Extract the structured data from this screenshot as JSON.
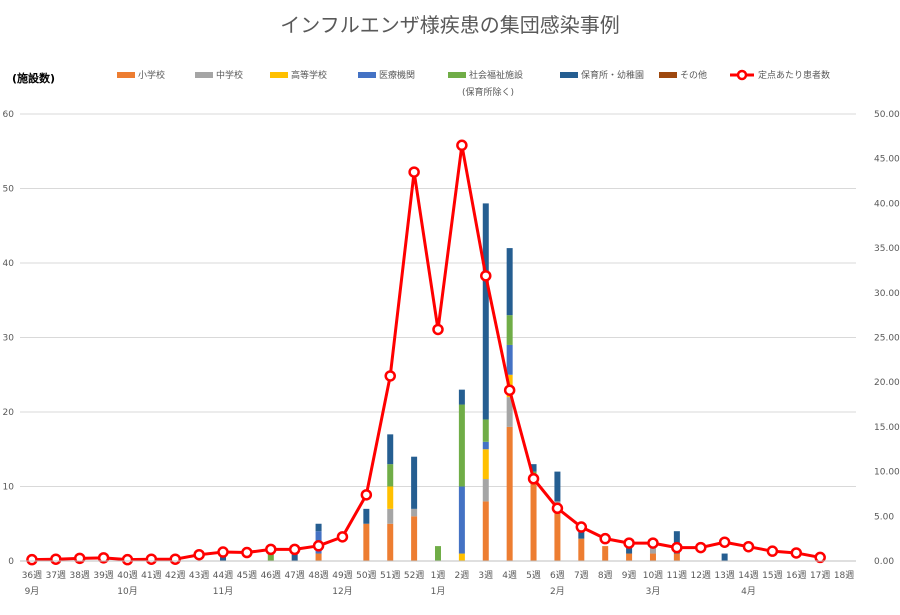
{
  "chart_data": {
    "type": "bar",
    "title": "インフルエンザ様疾患の集団感染事例",
    "ylabel": "(施設数)",
    "ylim": [
      0,
      60
    ],
    "y2lim": [
      0,
      50
    ],
    "y_ticks": [
      "0",
      "10",
      "20",
      "30",
      "40",
      "50",
      "60"
    ],
    "y2_ticks": [
      "0.00",
      "5.00",
      "10.00",
      "15.00",
      "20.00",
      "25.00",
      "30.00",
      "35.00",
      "40.00",
      "45.00",
      "50.00"
    ],
    "grid": true,
    "legend_position": "top",
    "legend_note": "(保育所除く)",
    "categories": [
      "36週",
      "37週",
      "38週",
      "39週",
      "40週",
      "41週",
      "42週",
      "43週",
      "44週",
      "45週",
      "46週",
      "47週",
      "48週",
      "49週",
      "50週",
      "51週",
      "52週",
      "1週",
      "2週",
      "3週",
      "4週",
      "5週",
      "6週",
      "7週",
      "8週",
      "9週",
      "10週",
      "11週",
      "12週",
      "13週",
      "14週",
      "15週",
      "16週",
      "17週",
      "18週"
    ],
    "months": [
      {
        "label": "9月",
        "index": 0
      },
      {
        "label": "10月",
        "index": 4
      },
      {
        "label": "11月",
        "index": 8
      },
      {
        "label": "12月",
        "index": 13
      },
      {
        "label": "1月",
        "index": 17
      },
      {
        "label": "2月",
        "index": 22
      },
      {
        "label": "3月",
        "index": 26
      },
      {
        "label": "4月",
        "index": 30
      }
    ],
    "series": [
      {
        "name": "小学校",
        "color": "#ED7D31",
        "values": [
          0,
          0,
          0,
          0,
          0,
          0,
          0,
          0,
          0,
          0,
          0,
          0,
          1,
          0,
          5,
          5,
          6,
          0,
          0,
          8,
          18,
          11,
          7,
          3,
          2,
          1,
          1,
          1,
          0,
          0,
          0,
          0,
          0,
          0,
          0
        ]
      },
      {
        "name": "中学校",
        "color": "#A5A5A5",
        "values": [
          0,
          0,
          0,
          0,
          0,
          0,
          0,
          0,
          0,
          0,
          0,
          0,
          0,
          0,
          0,
          2,
          1,
          0,
          0,
          3,
          4,
          0,
          1,
          0,
          0,
          0,
          1,
          0,
          0,
          0,
          0,
          0,
          0,
          0,
          0
        ]
      },
      {
        "name": "高等学校",
        "color": "#FFC000",
        "values": [
          0,
          0,
          0,
          0,
          0,
          0,
          0,
          0,
          0,
          0,
          0,
          0,
          0,
          0,
          0,
          3,
          0,
          0,
          1,
          4,
          3,
          0,
          0,
          0,
          0,
          0,
          0,
          0,
          0,
          0,
          0,
          0,
          0,
          0,
          0
        ]
      },
      {
        "name": "医療機関",
        "color": "#4472C4",
        "values": [
          0,
          0,
          0,
          0,
          0,
          0,
          0,
          0,
          0,
          0,
          0,
          0,
          3,
          0,
          0,
          0,
          0,
          0,
          9,
          1,
          4,
          0,
          0,
          0,
          0,
          0,
          0,
          0,
          0,
          0,
          0,
          0,
          0,
          0,
          0
        ]
      },
      {
        "name": "社会福祉施設",
        "color": "#70AD47",
        "values": [
          0,
          0,
          0,
          0,
          0,
          0,
          0,
          0,
          0,
          0,
          1,
          0,
          0,
          0,
          0,
          3,
          0,
          2,
          11,
          3,
          4,
          1,
          0,
          0,
          0,
          0,
          0,
          0,
          0,
          0,
          0,
          0,
          0,
          0,
          0
        ]
      },
      {
        "name": "保育所・幼稚園",
        "color": "#255E91",
        "values": [
          0,
          0,
          0,
          0,
          0,
          0,
          0,
          0,
          1,
          0,
          0,
          1,
          1,
          0,
          2,
          4,
          7,
          0,
          2,
          29,
          9,
          1,
          4,
          1,
          0,
          1,
          0,
          3,
          0,
          1,
          0,
          0,
          0,
          0,
          0
        ]
      },
      {
        "name": "その他",
        "color": "#9E480E",
        "values": [
          0,
          0,
          0,
          0,
          0,
          0,
          0,
          0,
          0,
          0,
          0,
          0,
          0,
          0,
          0,
          0,
          0,
          0,
          0,
          0,
          0,
          0,
          0,
          0,
          0,
          0,
          0,
          0,
          0,
          0,
          0,
          0,
          0,
          0,
          0
        ]
      }
    ],
    "line_series": {
      "name": "定点あたり患者数",
      "color": "#FF0000",
      "axis": "right",
      "values": [
        0.15,
        0.2,
        0.3,
        0.35,
        0.15,
        0.2,
        0.2,
        0.7,
        1.0,
        0.95,
        1.3,
        1.3,
        1.7,
        2.7,
        7.4,
        20.7,
        43.5,
        25.9,
        46.5,
        31.9,
        19.1,
        9.2,
        5.9,
        3.8,
        2.5,
        2.0,
        2.0,
        1.5,
        1.5,
        2.1,
        1.6,
        1.1,
        0.9,
        0.4,
        null
      ]
    }
  }
}
